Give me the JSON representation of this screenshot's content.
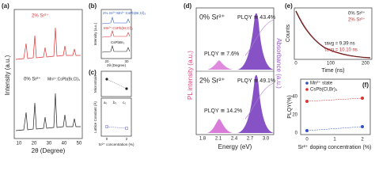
{
  "panels": [
    {
      "label": "(a)",
      "legend": [
        "2% Sr²⁺",
        "0% Sr²⁺",
        "Mn²⁺:CsPb(Br,Cl)₃"
      ],
      "y_label": "Intensity (a.u.)",
      "x_label": "2θ (Degree)",
      "x_ticks": [
        "10",
        "20",
        "30",
        "40",
        "50"
      ]
    },
    {
      "label": "(b)",
      "traces": [
        "2% Sr²⁺:Mn²⁺:CsPb(Br,Cl)₃",
        "Mn²⁺:CsPb(Br,Cl)₃",
        "CsPbBr₃"
      ],
      "y_label": "Intensity (a.u.)",
      "x_label": "2θ (Degree)",
      "x_ticks": [
        "20",
        "30"
      ]
    },
    {
      "label": "(c)",
      "top_label": "Microstrain",
      "legend": [
        "a₀",
        "b₀",
        "c₀"
      ],
      "y_label": "Lattice Constant (Å)",
      "x_label": "Sr²⁺ concentration (%)",
      "x_ticks": [
        "0",
        "2"
      ]
    },
    {
      "label": "(d)",
      "top_title": "0% Sr²⁺",
      "top_plqy_main": "PLQY ≅ 43.4%",
      "top_plqy_mn": "PLQY ≅ 7.6%",
      "bottom_title": "2% Sr²⁺",
      "bottom_plqy_main": "PLQY ≅ 49.1%",
      "bottom_plqy_mn": "PLQY ≅ 14.2%",
      "y_label": "PL intensity (a.u.)",
      "y2_label": "Absorbance (a.u.)",
      "x_label": "Energy (eV)",
      "x_ticks": [
        "1.8",
        "2.1",
        "2.4",
        "2.7",
        "3.0"
      ]
    },
    {
      "label": "(e)",
      "legend": [
        "0% Sr²⁺",
        "2% Sr²⁺"
      ],
      "tau_0": "τavg = 9.39 ns",
      "tau_2": "τavg = 10.10 ns",
      "y_label": "Counts",
      "x_label": "Time (ns)",
      "x_ticks": [
        "0",
        "100",
        "200"
      ]
    },
    {
      "label": "(f)",
      "legend": [
        "Mn²⁺ state",
        "CsPb(Cl,Br)₃"
      ],
      "y_label": "PLQY(%)",
      "y_ticks": [
        "0",
        "20",
        "40"
      ],
      "x_label": "Sr²⁺ doping concentration (%)",
      "x_ticks": [
        "0",
        "1",
        "2"
      ]
    }
  ]
}
